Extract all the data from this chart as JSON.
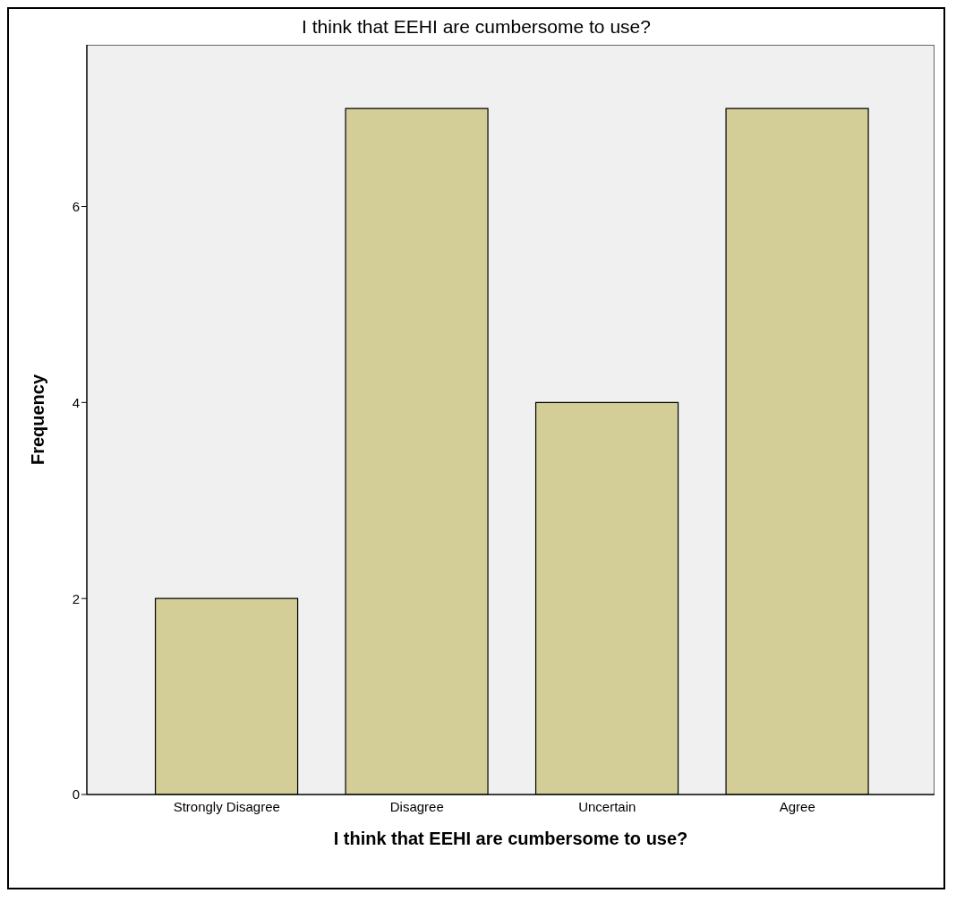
{
  "chart_data": {
    "type": "bar",
    "title": "I think that EEHI are cumbersome to use?",
    "xlabel": "I think that EEHI are cumbersome to use?",
    "ylabel": "Frequency",
    "categories": [
      "Strongly Disagree",
      "Disagree",
      "Uncertain",
      "Agree"
    ],
    "values": [
      2,
      7,
      4,
      7
    ],
    "color": "#d3ce97",
    "ylim": [
      0,
      7.65
    ],
    "yticks": [
      0,
      2,
      4,
      6
    ]
  }
}
